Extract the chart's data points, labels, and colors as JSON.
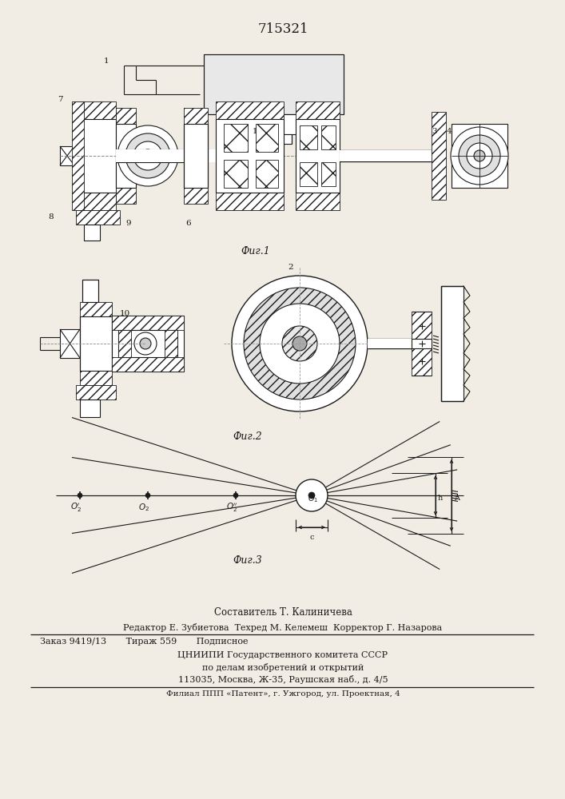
{
  "title": "715321",
  "bg_color": "#f2ede4",
  "lc": "#1a1a1a",
  "fig1_caption": "Фиг.1",
  "fig2_caption": "Фиг.2",
  "fig3_caption": "Фиг.3",
  "footer": [
    "Составитель Т. Калиничева",
    "Редактор Е. Зубиетова  Техред М. Келемеш  Корректор Г. Назарова",
    "Заказ 9419/13       Тираж 559       Подписное",
    "ЦНИИПИ Государственного комитета СССР",
    "по делам изобретений и открытий",
    "113035, Москва, Ж-35, Раушская наб., д. 4/5",
    "Филиал ППП «Патент», г. Ужгород, ул. Проектная, 4"
  ]
}
